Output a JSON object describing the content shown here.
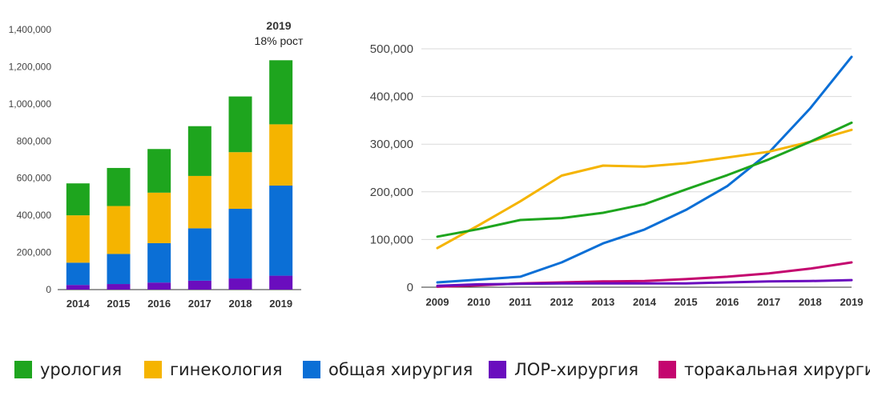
{
  "colors": {
    "urology": "#1ea51e",
    "gynecology": "#f5b400",
    "general_surgery": "#0b6fd6",
    "ent_surgery": "#6a0dbe",
    "thoracic_surgery": "#c4066f"
  },
  "legend": [
    {
      "label": "урология",
      "color": "#1ea51e"
    },
    {
      "label": "гинекология",
      "color": "#f5b400"
    },
    {
      "label": "общая хирургия",
      "color": "#0b6fd6"
    },
    {
      "label": "ЛОР-хирургия",
      "color": "#6a0dbe"
    },
    {
      "label": "торакальная хирургия",
      "color": "#c4066f"
    }
  ],
  "chart_data": [
    {
      "type": "bar",
      "stacked": true,
      "categories": [
        "2014",
        "2015",
        "2016",
        "2017",
        "2018",
        "2019"
      ],
      "ylim": [
        0,
        1400000
      ],
      "yticks": [
        0,
        200000,
        400000,
        600000,
        800000,
        1000000,
        1200000,
        1400000
      ],
      "ytick_labels": [
        "0",
        "200,000",
        "400,000",
        "600,000",
        "800,000",
        "1,000,000",
        "1,200,000",
        "1,400,000"
      ],
      "annotation": {
        "year": "2019",
        "text": "18% рост"
      },
      "series": [
        {
          "name": "ЛОР-хирургия",
          "color": "#6a0dbe",
          "values": [
            25000,
            30000,
            38000,
            48000,
            60000,
            75000
          ]
        },
        {
          "name": "общая хирургия",
          "color": "#0b6fd6",
          "values": [
            120000,
            162000,
            212000,
            282000,
            375000,
            485000
          ]
        },
        {
          "name": "гинекология",
          "color": "#f5b400",
          "values": [
            255000,
            258000,
            272000,
            282000,
            305000,
            330000
          ]
        },
        {
          "name": "урология",
          "color": "#1ea51e",
          "values": [
            172000,
            205000,
            235000,
            268000,
            300000,
            345000
          ]
        }
      ]
    },
    {
      "type": "line",
      "x": [
        "2009",
        "2010",
        "2011",
        "2012",
        "2013",
        "2014",
        "2015",
        "2016",
        "2017",
        "2018",
        "2019"
      ],
      "ylim": [
        0,
        500000
      ],
      "yticks": [
        0,
        100000,
        200000,
        300000,
        400000,
        500000
      ],
      "ytick_labels": [
        "0",
        "100,000",
        "200,000",
        "300,000",
        "400,000",
        "500,000"
      ],
      "series": [
        {
          "name": "урология",
          "color": "#1ea51e",
          "values": [
            106000,
            122000,
            141000,
            145000,
            156000,
            174000,
            205000,
            235000,
            268000,
            305000,
            345000
          ]
        },
        {
          "name": "гинекология",
          "color": "#f5b400",
          "values": [
            82000,
            130000,
            180000,
            234000,
            255000,
            253000,
            260000,
            272000,
            284000,
            305000,
            330000
          ]
        },
        {
          "name": "общая хирургия",
          "color": "#0b6fd6",
          "values": [
            10000,
            16000,
            22000,
            52000,
            92000,
            121000,
            162000,
            212000,
            282000,
            375000,
            483000
          ]
        },
        {
          "name": "ЛОР-хирургия",
          "color": "#6a0dbe",
          "values": [
            3000,
            6000,
            7000,
            8000,
            8000,
            8000,
            8000,
            10000,
            12000,
            13000,
            15000
          ]
        },
        {
          "name": "торакальная хирургия",
          "color": "#c4066f",
          "values": [
            1000,
            4000,
            8000,
            10000,
            12000,
            13000,
            17000,
            22000,
            29000,
            39000,
            52000
          ]
        }
      ]
    }
  ]
}
